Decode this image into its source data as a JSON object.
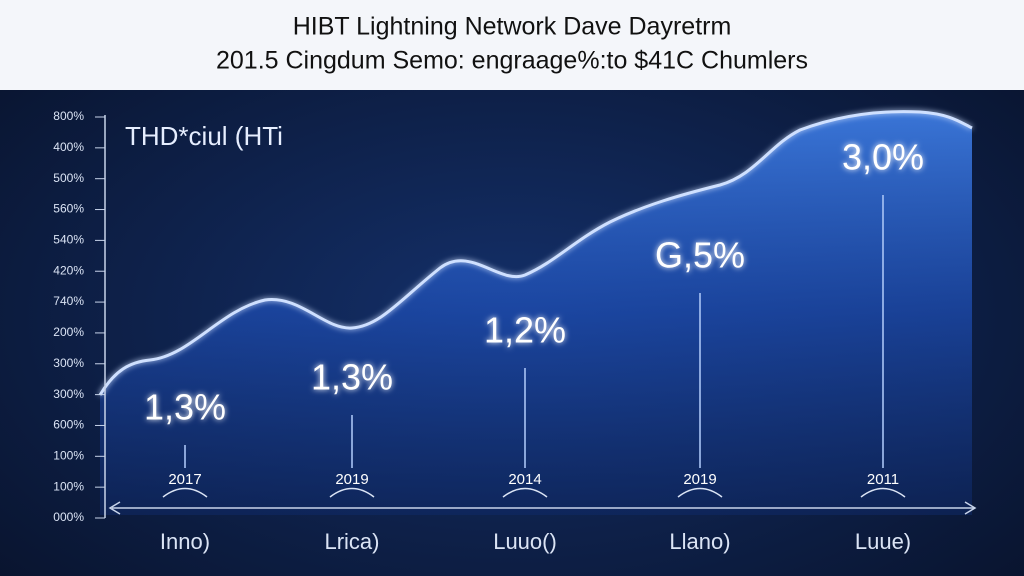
{
  "title": "HIBT Lightning Network Dave Dayretrm",
  "subtitle": "201.5 Cingdum Semo: engraage%:to $41C Chumlers",
  "panel_label": "THD*ciul (HTi",
  "y_axis_labels": [
    "800%",
    "400%",
    "500%",
    "560%",
    "540%",
    "420%",
    "740%",
    "200%",
    "300%",
    "300%",
    "600%",
    "100%",
    "100%",
    "000%"
  ],
  "points": [
    {
      "label": "1,3%",
      "year": "2017",
      "caption": "Inno)"
    },
    {
      "label": "1,3%",
      "year": "2019",
      "caption": "Lrica)"
    },
    {
      "label": "1,2%",
      "year": "2014",
      "caption": "Luuo()"
    },
    {
      "label": "G,5%",
      "year": "2019",
      "caption": "Llano)"
    },
    {
      "label": "3,0%",
      "year": "2011",
      "caption": "Luue)"
    }
  ]
}
